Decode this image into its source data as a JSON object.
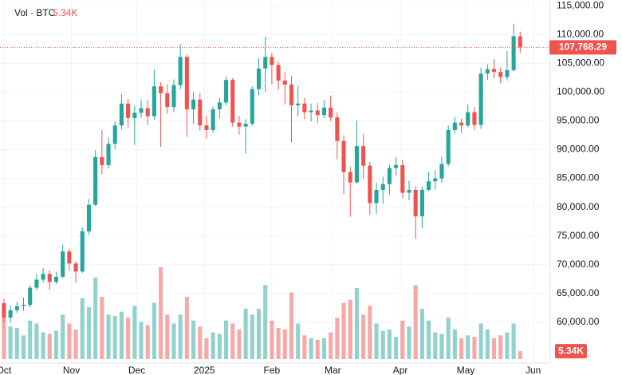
{
  "chart_data": {
    "type": "candlestick",
    "volume_title": "Vol · BTC",
    "last_volume_label": "5.34K",
    "last_price_label": "107,768.29",
    "up_color": "#26a69a",
    "down_color": "#ef5350",
    "grid": true,
    "ylim": [
      53600,
      116000
    ],
    "yticks": [
      {
        "value": 60000,
        "label": "60,000.00"
      },
      {
        "value": 65000,
        "label": "65,000.00"
      },
      {
        "value": 70000,
        "label": "70,000.00"
      },
      {
        "value": 75000,
        "label": "75,000.00"
      },
      {
        "value": 80000,
        "label": "80,000.00"
      },
      {
        "value": 85000,
        "label": "85,000.00"
      },
      {
        "value": 90000,
        "label": "90,000.00"
      },
      {
        "value": 95000,
        "label": "95,000.00"
      },
      {
        "value": 100000,
        "label": "100,000.00"
      },
      {
        "value": 105000,
        "label": "105,000.00"
      },
      {
        "value": 110000,
        "label": "110,000.00"
      },
      {
        "value": 115000,
        "label": "115,000.00"
      }
    ],
    "xlim": [
      -0.6,
      83.6
    ],
    "xticks": [
      {
        "value": 0,
        "label": "Oct"
      },
      {
        "value": 10.33,
        "label": "Nov"
      },
      {
        "value": 20.33,
        "label": "Dec"
      },
      {
        "value": 30.67,
        "label": "2025"
      },
      {
        "value": 41,
        "label": "Feb"
      },
      {
        "value": 50.33,
        "label": "Mar"
      },
      {
        "value": 60.67,
        "label": "Apr"
      },
      {
        "value": 70.67,
        "label": "May"
      },
      {
        "value": 81,
        "label": "Jun"
      }
    ],
    "open": [
      63300,
      60800,
      62100,
      62800,
      63000,
      66000,
      67400,
      68400,
      67000,
      67900,
      72300,
      70200,
      68800,
      75800,
      80400,
      88700,
      87300,
      91000,
      94200,
      98000,
      95500,
      96400,
      97200,
      95800,
      101000,
      99800,
      97400,
      101200,
      106100,
      97000,
      98700,
      94200,
      93400,
      97000,
      98200,
      102100,
      94700,
      94000,
      94500,
      100500,
      104100,
      106100,
      104700,
      102000,
      101300,
      97700,
      98000,
      96500,
      96800,
      96000,
      97300,
      95600,
      91500,
      86100,
      84300,
      90600,
      87200,
      80700,
      83000,
      84000,
      86800,
      87300,
      82500,
      83000,
      78400,
      83000,
      84500,
      85000,
      87500,
      93400,
      94700,
      94200,
      96500,
      94300,
      103200,
      104000,
      103500,
      102600,
      103800,
      109700
    ],
    "high": [
      64100,
      62900,
      63500,
      64300,
      66400,
      68400,
      69400,
      69000,
      68800,
      73500,
      72800,
      70600,
      76500,
      81400,
      89900,
      93400,
      92100,
      94900,
      99600,
      98800,
      97600,
      98700,
      98600,
      103900,
      101700,
      101400,
      102200,
      108300,
      106500,
      100000,
      99800,
      95800,
      97500,
      99000,
      102700,
      102400,
      95900,
      95300,
      101000,
      105900,
      109600,
      106800,
      105300,
      103400,
      102800,
      101100,
      99000,
      98000,
      98100,
      98600,
      99400,
      96500,
      92500,
      87000,
      95000,
      92700,
      87900,
      84300,
      85300,
      87400,
      88700,
      88200,
      84600,
      83600,
      83600,
      86100,
      86500,
      88800,
      94200,
      95700,
      95400,
      97800,
      97400,
      104200,
      104800,
      105700,
      104300,
      107100,
      111900,
      110500
    ],
    "low": [
      60000,
      59900,
      61600,
      62000,
      62600,
      65500,
      66900,
      65600,
      66600,
      67600,
      68900,
      66900,
      68600,
      75200,
      80200,
      85700,
      86700,
      90100,
      93500,
      93800,
      90800,
      95500,
      94300,
      95200,
      90500,
      96200,
      96500,
      100500,
      92200,
      94500,
      93300,
      91900,
      92900,
      95400,
      97700,
      94000,
      92600,
      89300,
      94100,
      99400,
      100100,
      101300,
      100400,
      97800,
      91200,
      95800,
      95300,
      94900,
      94600,
      95500,
      95000,
      88300,
      82300,
      78300,
      84100,
      85000,
      78600,
      78800,
      80600,
      82200,
      85500,
      81600,
      81200,
      74500,
      76300,
      82800,
      83100,
      84200,
      87100,
      92800,
      92900,
      93900,
      93400,
      93600,
      102100,
      102400,
      101500,
      102000,
      103600,
      106800
    ],
    "close": [
      60800,
      62100,
      62800,
      63000,
      66000,
      67400,
      68400,
      67000,
      67900,
      72300,
      70200,
      68800,
      75800,
      80400,
      88700,
      87300,
      91000,
      94200,
      98000,
      95500,
      96400,
      97200,
      95800,
      101000,
      99800,
      97400,
      101200,
      106100,
      97000,
      98700,
      94200,
      93400,
      97000,
      98200,
      102100,
      94700,
      94000,
      94500,
      100500,
      104100,
      106100,
      104700,
      102000,
      101300,
      97700,
      98000,
      96500,
      96800,
      96000,
      97300,
      95600,
      91500,
      86100,
      84300,
      90600,
      87200,
      80700,
      83000,
      84000,
      86800,
      87300,
      82500,
      83000,
      78400,
      83000,
      84500,
      85000,
      87500,
      93400,
      94700,
      94200,
      96500,
      94300,
      103200,
      104000,
      103500,
      102600,
      103800,
      109700,
      107768.29
    ],
    "volume": [
      28000,
      22000,
      21000,
      16000,
      26000,
      24000,
      18000,
      17000,
      19000,
      30000,
      24000,
      20000,
      41000,
      35000,
      55000,
      42000,
      30000,
      29000,
      32000,
      28000,
      36000,
      25000,
      23000,
      38000,
      62000,
      30000,
      24000,
      30000,
      42000,
      26000,
      22000,
      14000,
      18000,
      17000,
      26000,
      24000,
      20000,
      34000,
      30000,
      34000,
      50000,
      26000,
      21000,
      20000,
      45000,
      24000,
      16000,
      14000,
      13000,
      14000,
      18000,
      28000,
      38000,
      40000,
      48000,
      30000,
      36000,
      24000,
      19000,
      20000,
      15000,
      26000,
      22000,
      50000,
      34000,
      26000,
      18000,
      17000,
      28000,
      20000,
      14000,
      16000,
      15000,
      24000,
      20000,
      14000,
      16000,
      18000,
      24000,
      5340
    ]
  }
}
